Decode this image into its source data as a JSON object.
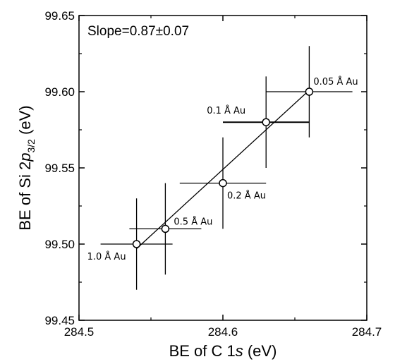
{
  "chart_data": {
    "type": "scatter",
    "xlabel": {
      "prefix": "BE of C 1",
      "italic": "s",
      "suffix": " (eV)"
    },
    "ylabel": {
      "prefix": "BE of Si 2",
      "italic": "p",
      "sub": "3/2",
      "suffix": " (eV)"
    },
    "annotation": {
      "prefix": "Slope=0.87",
      "pm": "±",
      "suffix": "0.07"
    },
    "xlim": [
      284.5,
      284.7
    ],
    "ylim": [
      99.45,
      99.65
    ],
    "x_ticks": [
      "284.5",
      "284.6",
      "284.7"
    ],
    "y_ticks": [
      "99.45",
      "99.50",
      "99.55",
      "99.60",
      "99.65"
    ],
    "points": [
      {
        "label": "1.0 Å Au",
        "x": 284.54,
        "y": 99.5,
        "xerr": 0.025,
        "yerr": 0.03
      },
      {
        "label": "0.5 Å Au",
        "x": 284.56,
        "y": 99.51,
        "xerr": 0.025,
        "yerr": 0.03
      },
      {
        "label": "0.2 Å Au",
        "x": 284.6,
        "y": 99.54,
        "xerr": 0.03,
        "yerr": 0.03
      },
      {
        "label": "0.1 Å Au",
        "x": 284.63,
        "y": 99.58,
        "xerr": 0.03,
        "yerr": 0.03
      },
      {
        "label": "0.05 Å Au",
        "x": 284.66,
        "y": 99.6,
        "xerr": 0.03,
        "yerr": 0.03
      }
    ],
    "fit_line": {
      "x": [
        284.54,
        284.66
      ],
      "y": [
        99.497,
        99.601
      ]
    },
    "grid": false,
    "marker": "open-circle"
  }
}
